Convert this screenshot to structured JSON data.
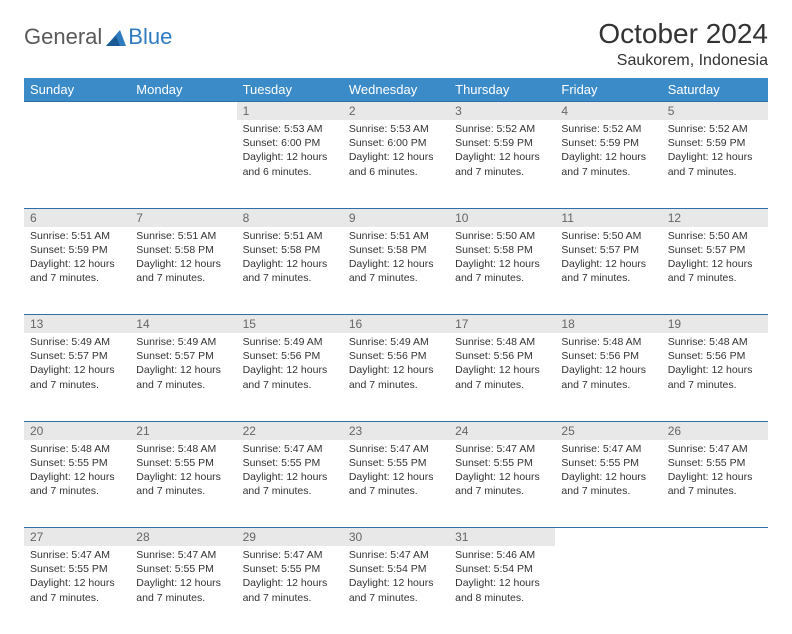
{
  "logo": {
    "general": "General",
    "blue": "Blue"
  },
  "header": {
    "title": "October 2024",
    "location": "Saukorem, Indonesia"
  },
  "colors": {
    "header_bg": "#3b8bc9",
    "daynum_bg": "#e8e8e8",
    "rule": "#2f6fa6"
  },
  "weekdays": [
    "Sunday",
    "Monday",
    "Tuesday",
    "Wednesday",
    "Thursday",
    "Friday",
    "Saturday"
  ],
  "weeks": [
    [
      null,
      null,
      {
        "n": "1",
        "sr": "Sunrise: 5:53 AM",
        "ss": "Sunset: 6:00 PM",
        "d1": "Daylight: 12 hours",
        "d2": "and 6 minutes."
      },
      {
        "n": "2",
        "sr": "Sunrise: 5:53 AM",
        "ss": "Sunset: 6:00 PM",
        "d1": "Daylight: 12 hours",
        "d2": "and 6 minutes."
      },
      {
        "n": "3",
        "sr": "Sunrise: 5:52 AM",
        "ss": "Sunset: 5:59 PM",
        "d1": "Daylight: 12 hours",
        "d2": "and 7 minutes."
      },
      {
        "n": "4",
        "sr": "Sunrise: 5:52 AM",
        "ss": "Sunset: 5:59 PM",
        "d1": "Daylight: 12 hours",
        "d2": "and 7 minutes."
      },
      {
        "n": "5",
        "sr": "Sunrise: 5:52 AM",
        "ss": "Sunset: 5:59 PM",
        "d1": "Daylight: 12 hours",
        "d2": "and 7 minutes."
      }
    ],
    [
      {
        "n": "6",
        "sr": "Sunrise: 5:51 AM",
        "ss": "Sunset: 5:59 PM",
        "d1": "Daylight: 12 hours",
        "d2": "and 7 minutes."
      },
      {
        "n": "7",
        "sr": "Sunrise: 5:51 AM",
        "ss": "Sunset: 5:58 PM",
        "d1": "Daylight: 12 hours",
        "d2": "and 7 minutes."
      },
      {
        "n": "8",
        "sr": "Sunrise: 5:51 AM",
        "ss": "Sunset: 5:58 PM",
        "d1": "Daylight: 12 hours",
        "d2": "and 7 minutes."
      },
      {
        "n": "9",
        "sr": "Sunrise: 5:51 AM",
        "ss": "Sunset: 5:58 PM",
        "d1": "Daylight: 12 hours",
        "d2": "and 7 minutes."
      },
      {
        "n": "10",
        "sr": "Sunrise: 5:50 AM",
        "ss": "Sunset: 5:58 PM",
        "d1": "Daylight: 12 hours",
        "d2": "and 7 minutes."
      },
      {
        "n": "11",
        "sr": "Sunrise: 5:50 AM",
        "ss": "Sunset: 5:57 PM",
        "d1": "Daylight: 12 hours",
        "d2": "and 7 minutes."
      },
      {
        "n": "12",
        "sr": "Sunrise: 5:50 AM",
        "ss": "Sunset: 5:57 PM",
        "d1": "Daylight: 12 hours",
        "d2": "and 7 minutes."
      }
    ],
    [
      {
        "n": "13",
        "sr": "Sunrise: 5:49 AM",
        "ss": "Sunset: 5:57 PM",
        "d1": "Daylight: 12 hours",
        "d2": "and 7 minutes."
      },
      {
        "n": "14",
        "sr": "Sunrise: 5:49 AM",
        "ss": "Sunset: 5:57 PM",
        "d1": "Daylight: 12 hours",
        "d2": "and 7 minutes."
      },
      {
        "n": "15",
        "sr": "Sunrise: 5:49 AM",
        "ss": "Sunset: 5:56 PM",
        "d1": "Daylight: 12 hours",
        "d2": "and 7 minutes."
      },
      {
        "n": "16",
        "sr": "Sunrise: 5:49 AM",
        "ss": "Sunset: 5:56 PM",
        "d1": "Daylight: 12 hours",
        "d2": "and 7 minutes."
      },
      {
        "n": "17",
        "sr": "Sunrise: 5:48 AM",
        "ss": "Sunset: 5:56 PM",
        "d1": "Daylight: 12 hours",
        "d2": "and 7 minutes."
      },
      {
        "n": "18",
        "sr": "Sunrise: 5:48 AM",
        "ss": "Sunset: 5:56 PM",
        "d1": "Daylight: 12 hours",
        "d2": "and 7 minutes."
      },
      {
        "n": "19",
        "sr": "Sunrise: 5:48 AM",
        "ss": "Sunset: 5:56 PM",
        "d1": "Daylight: 12 hours",
        "d2": "and 7 minutes."
      }
    ],
    [
      {
        "n": "20",
        "sr": "Sunrise: 5:48 AM",
        "ss": "Sunset: 5:55 PM",
        "d1": "Daylight: 12 hours",
        "d2": "and 7 minutes."
      },
      {
        "n": "21",
        "sr": "Sunrise: 5:48 AM",
        "ss": "Sunset: 5:55 PM",
        "d1": "Daylight: 12 hours",
        "d2": "and 7 minutes."
      },
      {
        "n": "22",
        "sr": "Sunrise: 5:47 AM",
        "ss": "Sunset: 5:55 PM",
        "d1": "Daylight: 12 hours",
        "d2": "and 7 minutes."
      },
      {
        "n": "23",
        "sr": "Sunrise: 5:47 AM",
        "ss": "Sunset: 5:55 PM",
        "d1": "Daylight: 12 hours",
        "d2": "and 7 minutes."
      },
      {
        "n": "24",
        "sr": "Sunrise: 5:47 AM",
        "ss": "Sunset: 5:55 PM",
        "d1": "Daylight: 12 hours",
        "d2": "and 7 minutes."
      },
      {
        "n": "25",
        "sr": "Sunrise: 5:47 AM",
        "ss": "Sunset: 5:55 PM",
        "d1": "Daylight: 12 hours",
        "d2": "and 7 minutes."
      },
      {
        "n": "26",
        "sr": "Sunrise: 5:47 AM",
        "ss": "Sunset: 5:55 PM",
        "d1": "Daylight: 12 hours",
        "d2": "and 7 minutes."
      }
    ],
    [
      {
        "n": "27",
        "sr": "Sunrise: 5:47 AM",
        "ss": "Sunset: 5:55 PM",
        "d1": "Daylight: 12 hours",
        "d2": "and 7 minutes."
      },
      {
        "n": "28",
        "sr": "Sunrise: 5:47 AM",
        "ss": "Sunset: 5:55 PM",
        "d1": "Daylight: 12 hours",
        "d2": "and 7 minutes."
      },
      {
        "n": "29",
        "sr": "Sunrise: 5:47 AM",
        "ss": "Sunset: 5:55 PM",
        "d1": "Daylight: 12 hours",
        "d2": "and 7 minutes."
      },
      {
        "n": "30",
        "sr": "Sunrise: 5:47 AM",
        "ss": "Sunset: 5:54 PM",
        "d1": "Daylight: 12 hours",
        "d2": "and 7 minutes."
      },
      {
        "n": "31",
        "sr": "Sunrise: 5:46 AM",
        "ss": "Sunset: 5:54 PM",
        "d1": "Daylight: 12 hours",
        "d2": "and 8 minutes."
      },
      null,
      null
    ]
  ]
}
